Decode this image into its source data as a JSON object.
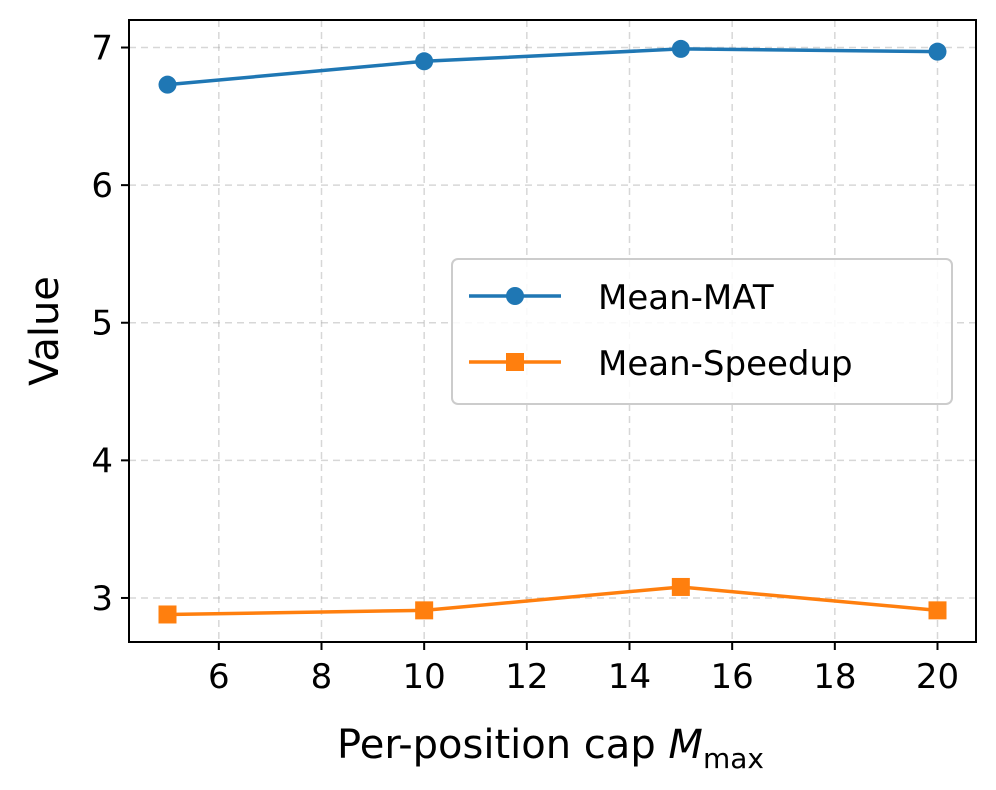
{
  "chart_data": {
    "type": "line",
    "title": "",
    "xlabel": {
      "main": "Per-position cap ",
      "var": "M",
      "sub": "max"
    },
    "ylabel": "Value",
    "x": [
      5,
      10,
      15,
      20
    ],
    "xlim": [
      4.25,
      20.75
    ],
    "ylim": [
      2.68,
      7.2
    ],
    "xticks": [
      6,
      8,
      10,
      12,
      14,
      16,
      18,
      20
    ],
    "yticks": [
      3,
      4,
      5,
      6,
      7
    ],
    "grid": true,
    "legend_position": "center-right",
    "series": [
      {
        "name": "Mean-MAT",
        "values": [
          6.73,
          6.9,
          6.99,
          6.97
        ],
        "color": "#1f77b4",
        "marker": "circle"
      },
      {
        "name": "Mean-Speedup",
        "values": [
          2.88,
          2.91,
          3.08,
          2.91
        ],
        "color": "#ff7f0e",
        "marker": "square"
      }
    ]
  }
}
